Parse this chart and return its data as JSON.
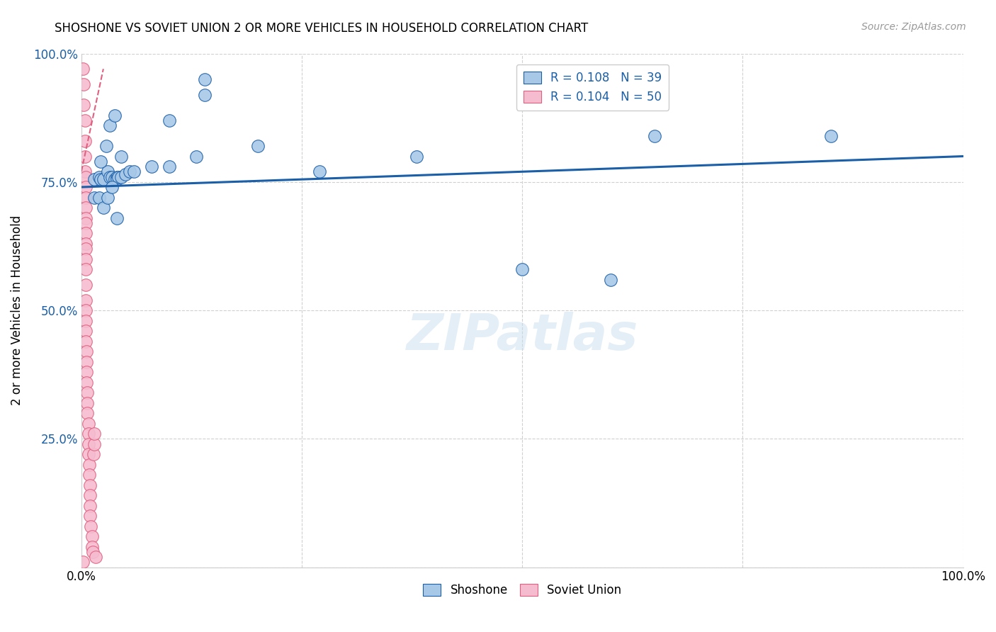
{
  "title": "SHOSHONE VS SOVIET UNION 2 OR MORE VEHICLES IN HOUSEHOLD CORRELATION CHART",
  "source": "Source: ZipAtlas.com",
  "ylabel": "2 or more Vehicles in Household",
  "legend_label1": "R = 0.108   N = 39",
  "legend_label2": "R = 0.104   N = 50",
  "shoshone_color": "#a8c8e8",
  "soviet_color": "#f5bcd0",
  "trendline_shoshone_color": "#1a5fa8",
  "trendline_soviet_color": "#e06080",
  "background_color": "#ffffff",
  "grid_color": "#d0d0d0",
  "shoshone_x": [
    0.015,
    0.02,
    0.022,
    0.025,
    0.03,
    0.032,
    0.035,
    0.038,
    0.04,
    0.04,
    0.042,
    0.045,
    0.05,
    0.055,
    0.06,
    0.08,
    0.1,
    0.13,
    0.14,
    0.2,
    0.27,
    0.38,
    0.5,
    0.6,
    0.65,
    0.85,
    0.1,
    0.14,
    0.015,
    0.02,
    0.025,
    0.03,
    0.035,
    0.04,
    0.022,
    0.028,
    0.032,
    0.038,
    0.045
  ],
  "shoshone_y": [
    0.755,
    0.76,
    0.755,
    0.755,
    0.77,
    0.76,
    0.76,
    0.755,
    0.76,
    0.755,
    0.76,
    0.76,
    0.765,
    0.77,
    0.77,
    0.78,
    0.78,
    0.8,
    0.92,
    0.82,
    0.77,
    0.8,
    0.58,
    0.56,
    0.84,
    0.84,
    0.87,
    0.95,
    0.72,
    0.72,
    0.7,
    0.72,
    0.74,
    0.68,
    0.79,
    0.82,
    0.86,
    0.88,
    0.8
  ],
  "soviet_x": [
    0.002,
    0.003,
    0.003,
    0.004,
    0.004,
    0.004,
    0.004,
    0.005,
    0.005,
    0.005,
    0.005,
    0.005,
    0.005,
    0.005,
    0.005,
    0.005,
    0.005,
    0.005,
    0.005,
    0.005,
    0.005,
    0.005,
    0.005,
    0.005,
    0.006,
    0.006,
    0.006,
    0.006,
    0.007,
    0.007,
    0.007,
    0.008,
    0.008,
    0.008,
    0.008,
    0.009,
    0.009,
    0.01,
    0.01,
    0.01,
    0.01,
    0.011,
    0.012,
    0.012,
    0.013,
    0.014,
    0.015,
    0.015,
    0.016,
    0.002
  ],
  "soviet_y": [
    0.97,
    0.94,
    0.9,
    0.87,
    0.83,
    0.8,
    0.77,
    0.76,
    0.74,
    0.72,
    0.7,
    0.68,
    0.67,
    0.65,
    0.63,
    0.62,
    0.6,
    0.58,
    0.55,
    0.52,
    0.5,
    0.48,
    0.46,
    0.44,
    0.42,
    0.4,
    0.38,
    0.36,
    0.34,
    0.32,
    0.3,
    0.28,
    0.26,
    0.24,
    0.22,
    0.2,
    0.18,
    0.16,
    0.14,
    0.12,
    0.1,
    0.08,
    0.06,
    0.04,
    0.03,
    0.22,
    0.24,
    0.26,
    0.02,
    0.01
  ],
  "xlim": [
    0.0,
    1.0
  ],
  "ylim": [
    0.0,
    1.0
  ],
  "trendline_shoshone_x0": 0.0,
  "trendline_shoshone_y0": 0.74,
  "trendline_shoshone_x1": 1.0,
  "trendline_shoshone_y1": 0.8,
  "trendline_soviet_x0": 0.0,
  "trendline_soviet_y0": 0.77,
  "trendline_soviet_x1": 0.025,
  "trendline_soviet_y1": 0.97
}
